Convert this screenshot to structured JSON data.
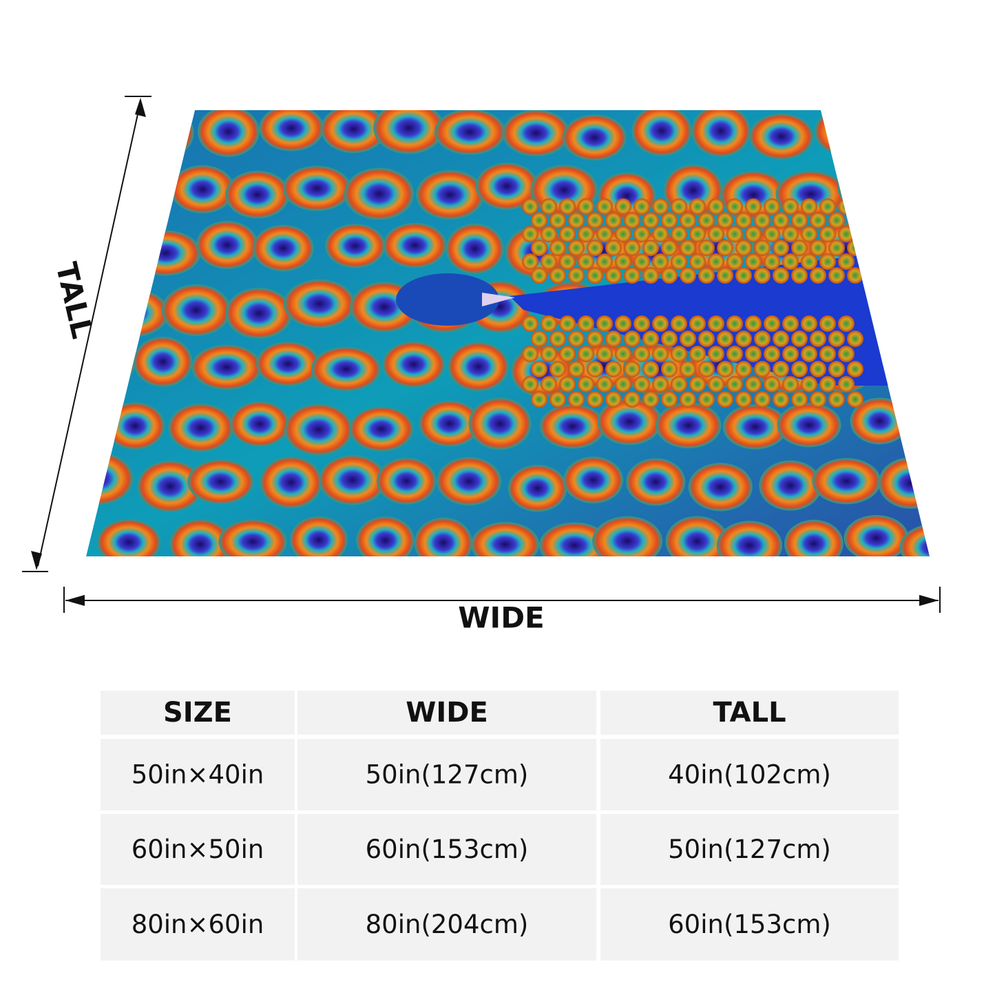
{
  "dimension_labels": {
    "tall": "TALL",
    "wide": "WIDE"
  },
  "table": {
    "header": [
      "SIZE",
      "WIDE",
      "TALL"
    ],
    "rows": [
      [
        "50in×40in",
        "50in(127cm)",
        "40in(102cm)"
      ],
      [
        "60in×50in",
        "60in(153cm)",
        "50in(127cm)"
      ],
      [
        "80in×60in",
        "80in(204cm)",
        "60in(153cm)"
      ]
    ]
  }
}
